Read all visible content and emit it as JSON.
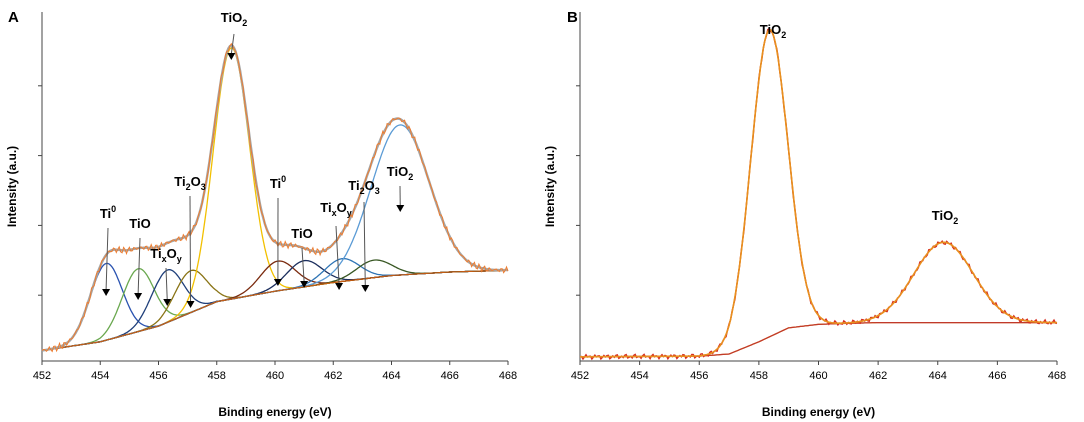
{
  "chart_data": [
    {
      "panel": "A",
      "type": "line",
      "xlabel": "Binding energy (eV)",
      "ylabel": "Intensity (a.u.)",
      "xlim": [
        452,
        468
      ],
      "x_ticks": [
        452,
        454,
        456,
        458,
        460,
        462,
        464,
        466,
        468
      ],
      "background": [
        [
          452,
          0.03
        ],
        [
          454,
          0.055
        ],
        [
          456,
          0.1
        ],
        [
          458,
          0.17
        ],
        [
          460,
          0.2
        ],
        [
          462,
          0.225
        ],
        [
          464,
          0.245
        ],
        [
          466,
          0.255
        ],
        [
          468,
          0.26
        ]
      ],
      "components": [
        {
          "name": "Ti0",
          "center": 454.2,
          "height": 0.22,
          "width": 0.55,
          "color": "#2a53b0"
        },
        {
          "name": "TiO",
          "center": 455.3,
          "height": 0.18,
          "width": 0.55,
          "color": "#6aa84f"
        },
        {
          "name": "TixOy",
          "center": 456.3,
          "height": 0.15,
          "width": 0.55,
          "color": "#1f3f7a"
        },
        {
          "name": "Ti2O3",
          "center": 457.1,
          "height": 0.12,
          "width": 0.55,
          "color": "#8a7416"
        },
        {
          "name": "TiO2",
          "center": 458.5,
          "height": 0.72,
          "width": 0.62,
          "color": "#f2c000"
        },
        {
          "name": "Ti0",
          "center": 460.1,
          "height": 0.085,
          "width": 0.6,
          "color": "#7b2b0f"
        },
        {
          "name": "TiO",
          "center": 461.0,
          "height": 0.075,
          "width": 0.6,
          "color": "#1c2f5e"
        },
        {
          "name": "TixOy",
          "center": 462.3,
          "height": 0.065,
          "width": 0.6,
          "color": "#2e74b5"
        },
        {
          "name": "Ti2O3",
          "center": 463.4,
          "height": 0.05,
          "width": 0.6,
          "color": "#385723"
        },
        {
          "name": "TiO2",
          "center": 464.3,
          "height": 0.43,
          "width": 1.0,
          "color": "#5b9bd5"
        }
      ],
      "annotations": [
        {
          "base": "Ti",
          "sup": "0",
          "x": 454.2
        },
        {
          "base": "TiO",
          "x": 455.3
        },
        {
          "base": "Ti",
          "sub1": "x",
          "mid": "O",
          "sub2": "y",
          "x": 456.3
        },
        {
          "base": "Ti",
          "sub1": "2",
          "mid": "O",
          "sub2": "3",
          "x": 457.1
        },
        {
          "base": "TiO",
          "sub1": "2",
          "x": 458.5
        },
        {
          "base": "Ti",
          "sup": "0",
          "x": 460.1
        },
        {
          "base": "TiO",
          "x": 461.0
        },
        {
          "base": "Ti",
          "sub1": "x",
          "mid": "O",
          "sub2": "y",
          "x": 462.2
        },
        {
          "base": "Ti",
          "sub1": "2",
          "mid": "O",
          "sub2": "3",
          "x": 463.1
        },
        {
          "base": "TiO",
          "sub1": "2",
          "x": 464.3
        }
      ]
    },
    {
      "panel": "B",
      "type": "line",
      "xlabel": "Binding energy (eV)",
      "ylabel": "Intensity (a.u.)",
      "xlim": [
        452,
        468
      ],
      "x_ticks": [
        452,
        454,
        456,
        458,
        460,
        462,
        464,
        466,
        468
      ],
      "background": [
        [
          452,
          0.012
        ],
        [
          456,
          0.014
        ],
        [
          457,
          0.02
        ],
        [
          458,
          0.055
        ],
        [
          459,
          0.095
        ],
        [
          460,
          0.105
        ],
        [
          461,
          0.108
        ],
        [
          462,
          0.11
        ],
        [
          468,
          0.11
        ]
      ],
      "components": [
        {
          "name": "TiO2",
          "center": 458.35,
          "height": 0.88,
          "width": 0.62,
          "color": "#e07a1f"
        },
        {
          "name": "TiO2",
          "center": 464.2,
          "height": 0.23,
          "width": 1.0,
          "color": "#e07a1f"
        }
      ],
      "annotations": [
        {
          "base": "TiO",
          "sub1": "2",
          "x": 458.4
        },
        {
          "base": "TiO",
          "sub1": "2",
          "x": 464.1
        }
      ]
    }
  ]
}
